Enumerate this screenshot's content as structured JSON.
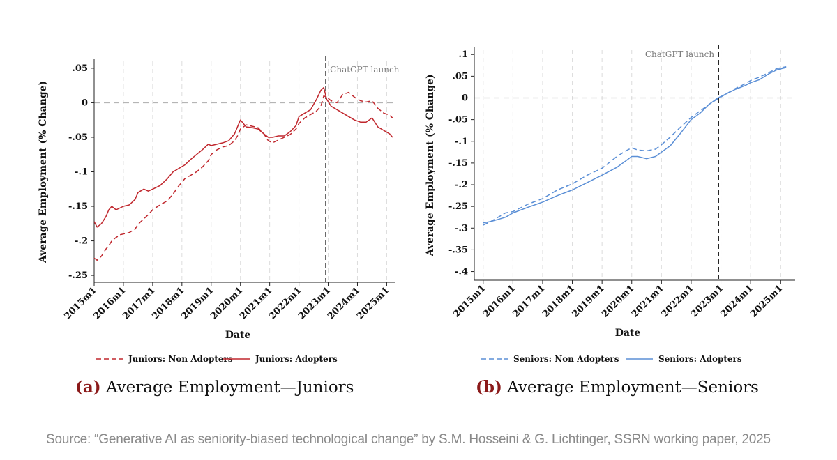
{
  "colors": {
    "juniors": "#c0272d",
    "seniors": "#5b8fd6",
    "zero_line": "#b5b5b5",
    "grid": "#dcdcdc",
    "launch_line": "#111111"
  },
  "chart_data": [
    {
      "type": "line",
      "panel": "a",
      "xlabel": "Date",
      "ylabel": "Average Employment (% Change)",
      "x_tick_labels": [
        "2015m1",
        "2016m1",
        "2017m1",
        "2018m1",
        "2019m1",
        "2020m1",
        "2021m1",
        "2022m1",
        "2023m1",
        "2024m1",
        "2025m1"
      ],
      "xlim": [
        2015.0,
        2025.3
      ],
      "ylim": [
        -0.26,
        0.06
      ],
      "y_ticks": [
        0.05,
        0,
        -0.05,
        -0.1,
        -0.15,
        -0.2,
        -0.25
      ],
      "y_tick_labels": [
        ".05",
        "0",
        "-.05",
        "-.1",
        "-.15",
        "-.2",
        "-.25"
      ],
      "grid": "vertical dashed",
      "reference_line": {
        "y": 0,
        "style": "dashed"
      },
      "annotation": {
        "label": "ChatGPT launch",
        "x": 2022.92
      },
      "legend_position": "bottom",
      "series": [
        {
          "name": "Juniors: Non Adopters",
          "style": "dashed",
          "color": "#c0272d",
          "x": [
            2015.0,
            2015.1,
            2015.25,
            2015.4,
            2015.5,
            2015.6,
            2015.75,
            2015.9,
            2016.0,
            2016.2,
            2016.4,
            2016.5,
            2016.7,
            2016.85,
            2017.0,
            2017.25,
            2017.5,
            2017.7,
            2017.9,
            2018.1,
            2018.3,
            2018.5,
            2018.7,
            2018.9,
            2019.0,
            2019.2,
            2019.4,
            2019.6,
            2019.8,
            2019.9,
            2020.0,
            2020.2,
            2020.4,
            2020.6,
            2020.8,
            2020.95,
            2021.1,
            2021.3,
            2021.5,
            2021.7,
            2021.9,
            2022.0,
            2022.2,
            2022.4,
            2022.6,
            2022.75,
            2022.85,
            2022.95,
            2023.1,
            2023.3,
            2023.5,
            2023.7,
            2023.9,
            2024.1,
            2024.3,
            2024.5,
            2024.7,
            2024.9,
            2025.1,
            2025.2
          ],
          "y": [
            -0.225,
            -0.228,
            -0.222,
            -0.212,
            -0.207,
            -0.2,
            -0.195,
            -0.191,
            -0.19,
            -0.188,
            -0.183,
            -0.176,
            -0.168,
            -0.162,
            -0.155,
            -0.148,
            -0.142,
            -0.132,
            -0.12,
            -0.11,
            -0.105,
            -0.1,
            -0.093,
            -0.084,
            -0.075,
            -0.068,
            -0.064,
            -0.062,
            -0.055,
            -0.048,
            -0.038,
            -0.032,
            -0.034,
            -0.036,
            -0.045,
            -0.055,
            -0.058,
            -0.054,
            -0.05,
            -0.046,
            -0.038,
            -0.03,
            -0.022,
            -0.017,
            -0.012,
            -0.005,
            0.01,
            0.008,
            0.003,
            0.0,
            0.012,
            0.015,
            0.008,
            0.003,
            0.001,
            0.003,
            -0.008,
            -0.015,
            -0.018,
            -0.022
          ]
        },
        {
          "name": "Juniors: Adopters",
          "style": "solid",
          "color": "#c0272d",
          "x": [
            2015.0,
            2015.1,
            2015.25,
            2015.4,
            2015.5,
            2015.6,
            2015.75,
            2015.9,
            2016.0,
            2016.2,
            2016.4,
            2016.5,
            2016.7,
            2016.85,
            2017.0,
            2017.25,
            2017.5,
            2017.7,
            2017.9,
            2018.1,
            2018.3,
            2018.5,
            2018.7,
            2018.9,
            2019.0,
            2019.2,
            2019.4,
            2019.6,
            2019.8,
            2019.9,
            2020.0,
            2020.2,
            2020.4,
            2020.6,
            2020.8,
            2020.95,
            2021.1,
            2021.3,
            2021.5,
            2021.7,
            2021.9,
            2022.0,
            2022.2,
            2022.4,
            2022.6,
            2022.75,
            2022.85,
            2022.95,
            2023.1,
            2023.3,
            2023.5,
            2023.7,
            2023.9,
            2024.1,
            2024.3,
            2024.5,
            2024.7,
            2024.9,
            2025.1,
            2025.2
          ],
          "y": [
            -0.172,
            -0.18,
            -0.175,
            -0.165,
            -0.155,
            -0.15,
            -0.155,
            -0.152,
            -0.15,
            -0.148,
            -0.14,
            -0.13,
            -0.125,
            -0.128,
            -0.125,
            -0.12,
            -0.11,
            -0.1,
            -0.095,
            -0.09,
            -0.082,
            -0.075,
            -0.068,
            -0.06,
            -0.062,
            -0.06,
            -0.058,
            -0.055,
            -0.045,
            -0.035,
            -0.025,
            -0.035,
            -0.036,
            -0.038,
            -0.045,
            -0.05,
            -0.05,
            -0.048,
            -0.048,
            -0.042,
            -0.033,
            -0.02,
            -0.015,
            -0.01,
            0.005,
            0.018,
            0.022,
            0.005,
            -0.005,
            -0.01,
            -0.015,
            -0.02,
            -0.025,
            -0.028,
            -0.028,
            -0.022,
            -0.035,
            -0.04,
            -0.045,
            -0.05
          ]
        }
      ]
    },
    {
      "type": "line",
      "panel": "b",
      "xlabel": "Date",
      "ylabel": "Average Employment (% Change)",
      "x_tick_labels": [
        "2015m1",
        "2016m1",
        "2017m1",
        "2018m1",
        "2019m1",
        "2020m1",
        "2021m1",
        "2022m1",
        "2023m1",
        "2024m1",
        "2025m1"
      ],
      "xlim": [
        2014.7,
        2025.5
      ],
      "ylim": [
        -0.42,
        0.11
      ],
      "y_ticks": [
        0.1,
        0.05,
        0,
        -0.05,
        -0.1,
        -0.15,
        -0.2,
        -0.25,
        -0.3,
        -0.35,
        -0.4
      ],
      "y_tick_labels": [
        ".1",
        ".05",
        "0",
        "-.05",
        "-.1",
        "-.15",
        "-.2",
        "-.25",
        "-.3",
        "-.35",
        "-.4"
      ],
      "grid": "vertical dashed",
      "reference_line": {
        "y": 0,
        "style": "dashed"
      },
      "annotation": {
        "label": "ChatGPT launch",
        "x": 2022.92
      },
      "legend_position": "bottom",
      "series": [
        {
          "name": "Seniors: Non Adopters",
          "style": "dashed",
          "color": "#5b8fd6",
          "x": [
            2015.0,
            2015.25,
            2015.5,
            2015.75,
            2016.0,
            2016.5,
            2017.0,
            2017.5,
            2018.0,
            2018.5,
            2019.0,
            2019.5,
            2019.8,
            2020.0,
            2020.2,
            2020.5,
            2020.8,
            2021.0,
            2021.3,
            2021.6,
            2022.0,
            2022.3,
            2022.6,
            2022.9,
            2023.2,
            2023.5,
            2023.8,
            2024.0,
            2024.3,
            2024.6,
            2024.9,
            2025.2
          ],
          "y": [
            -0.293,
            -0.285,
            -0.275,
            -0.265,
            -0.262,
            -0.245,
            -0.232,
            -0.212,
            -0.198,
            -0.178,
            -0.162,
            -0.135,
            -0.122,
            -0.115,
            -0.12,
            -0.122,
            -0.118,
            -0.108,
            -0.09,
            -0.07,
            -0.045,
            -0.03,
            -0.015,
            -0.002,
            0.01,
            0.022,
            0.032,
            0.04,
            0.048,
            0.058,
            0.068,
            0.072
          ]
        },
        {
          "name": "Seniors: Adopters",
          "style": "solid",
          "color": "#5b8fd6",
          "x": [
            2015.0,
            2015.25,
            2015.5,
            2015.75,
            2016.0,
            2016.5,
            2017.0,
            2017.5,
            2018.0,
            2018.5,
            2019.0,
            2019.5,
            2019.8,
            2020.0,
            2020.2,
            2020.5,
            2020.8,
            2021.0,
            2021.3,
            2021.6,
            2022.0,
            2022.3,
            2022.6,
            2022.9,
            2023.2,
            2023.5,
            2023.8,
            2024.0,
            2024.3,
            2024.6,
            2024.9,
            2025.2
          ],
          "y": [
            -0.288,
            -0.285,
            -0.28,
            -0.275,
            -0.265,
            -0.252,
            -0.24,
            -0.225,
            -0.212,
            -0.195,
            -0.178,
            -0.16,
            -0.145,
            -0.135,
            -0.135,
            -0.14,
            -0.135,
            -0.125,
            -0.11,
            -0.085,
            -0.05,
            -0.035,
            -0.015,
            0.0,
            0.01,
            0.02,
            0.028,
            0.035,
            0.042,
            0.055,
            0.065,
            0.07
          ]
        }
      ]
    }
  ],
  "captions": {
    "a": {
      "letter": "(a)",
      "text": "Average Employment—Juniors"
    },
    "b": {
      "letter": "(b)",
      "text": "Average Employment—Seniors"
    }
  },
  "source": "Source: “Generative AI as seniority-biased technological change” by S.M. Hosseini & G. Lichtinger, SSRN working paper, 2025"
}
